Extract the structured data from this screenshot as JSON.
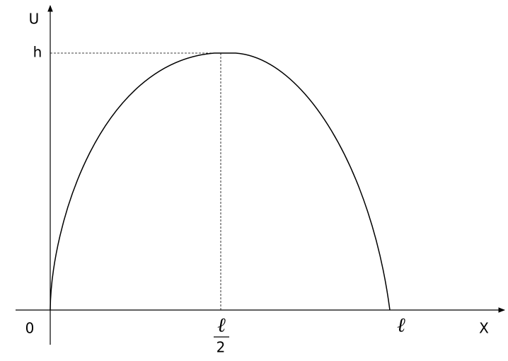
{
  "axes": {
    "y_label": "U",
    "x_label": "X",
    "origin": "0"
  },
  "marks": {
    "h": "h",
    "half_numerator": "ℓ",
    "half_denominator": "2",
    "length": "ℓ"
  }
}
